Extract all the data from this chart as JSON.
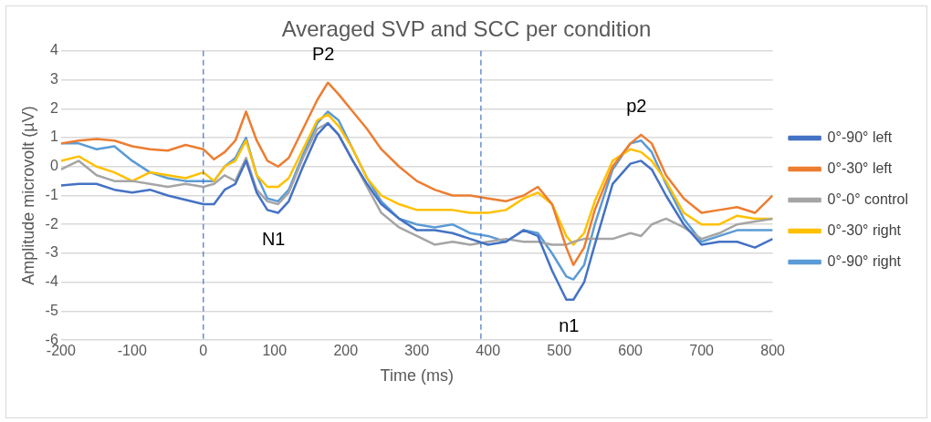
{
  "chart_data": {
    "type": "line",
    "title": "Averaged SVP and SCC per condition",
    "xlabel": "Time (ms)",
    "ylabel": "Amplitude microvolt (µV)",
    "x": [
      -200,
      -175,
      -150,
      -125,
      -100,
      -75,
      -50,
      -25,
      0,
      15,
      30,
      45,
      60,
      75,
      90,
      105,
      120,
      140,
      160,
      175,
      190,
      210,
      230,
      250,
      275,
      300,
      325,
      350,
      375,
      400,
      425,
      450,
      470,
      490,
      510,
      520,
      535,
      550,
      575,
      600,
      615,
      630,
      650,
      675,
      700,
      725,
      750,
      775,
      800
    ],
    "series": [
      {
        "name": "0°-90° left",
        "color": "#4472c4",
        "values": [
          -0.65,
          -0.6,
          -0.6,
          -0.8,
          -0.9,
          -0.8,
          -1.0,
          -1.15,
          -1.3,
          -1.3,
          -0.8,
          -0.6,
          0.2,
          -0.9,
          -1.5,
          -1.6,
          -1.2,
          0.0,
          1.1,
          1.5,
          1.1,
          0.2,
          -0.6,
          -1.3,
          -1.8,
          -2.2,
          -2.2,
          -2.3,
          -2.5,
          -2.7,
          -2.6,
          -2.2,
          -2.4,
          -3.6,
          -4.6,
          -4.6,
          -4.0,
          -2.7,
          -0.6,
          0.1,
          0.2,
          -0.1,
          -1.0,
          -2.0,
          -2.7,
          -2.6,
          -2.6,
          -2.8,
          -2.5
        ]
      },
      {
        "name": "0°-30° left",
        "color": "#ed7d31",
        "values": [
          0.8,
          0.9,
          0.95,
          0.9,
          0.7,
          0.6,
          0.55,
          0.75,
          0.6,
          0.25,
          0.5,
          0.9,
          1.9,
          0.9,
          0.2,
          0.0,
          0.3,
          1.3,
          2.3,
          2.9,
          2.5,
          1.9,
          1.3,
          0.6,
          0.0,
          -0.5,
          -0.8,
          -1.0,
          -1.0,
          -1.1,
          -1.2,
          -1.0,
          -0.7,
          -1.3,
          -2.8,
          -3.4,
          -2.8,
          -1.5,
          0.0,
          0.8,
          1.1,
          0.8,
          -0.3,
          -1.1,
          -1.6,
          -1.5,
          -1.4,
          -1.6,
          -1.0
        ]
      },
      {
        "name": "0°-0° control",
        "color": "#a5a5a5",
        "values": [
          -0.1,
          0.2,
          -0.3,
          -0.5,
          -0.5,
          -0.6,
          -0.7,
          -0.6,
          -0.7,
          -0.6,
          -0.3,
          -0.5,
          0.3,
          -0.8,
          -1.2,
          -1.3,
          -0.9,
          0.3,
          1.3,
          1.5,
          1.1,
          0.2,
          -0.7,
          -1.6,
          -2.1,
          -2.4,
          -2.7,
          -2.6,
          -2.7,
          -2.6,
          -2.5,
          -2.6,
          -2.6,
          -2.7,
          -2.7,
          -2.6,
          -2.5,
          -2.5,
          -2.5,
          -2.3,
          -2.4,
          -2.0,
          -1.8,
          -2.1,
          -2.5,
          -2.3,
          -2.0,
          -1.9,
          -1.8
        ]
      },
      {
        "name": "0°-30° right",
        "color": "#ffc000",
        "values": [
          0.2,
          0.35,
          0.0,
          -0.2,
          -0.5,
          -0.2,
          -0.3,
          -0.4,
          -0.2,
          -0.5,
          0.0,
          0.2,
          0.9,
          -0.3,
          -0.7,
          -0.7,
          -0.4,
          0.6,
          1.6,
          1.8,
          1.4,
          0.6,
          -0.4,
          -1.0,
          -1.3,
          -1.5,
          -1.5,
          -1.5,
          -1.6,
          -1.6,
          -1.5,
          -1.1,
          -0.9,
          -1.3,
          -2.4,
          -2.7,
          -2.3,
          -1.2,
          0.2,
          0.6,
          0.5,
          0.2,
          -0.5,
          -1.6,
          -2.0,
          -2.0,
          -1.7,
          -1.8,
          -1.8
        ]
      },
      {
        "name": "0°-90° right",
        "color": "#5b9bd5",
        "values": [
          0.8,
          0.8,
          0.6,
          0.7,
          0.2,
          -0.2,
          -0.4,
          -0.5,
          -0.5,
          -0.5,
          0.0,
          0.3,
          1.0,
          -0.3,
          -1.1,
          -1.2,
          -0.8,
          0.4,
          1.5,
          1.9,
          1.6,
          0.6,
          -0.4,
          -1.2,
          -1.8,
          -2.0,
          -2.1,
          -2.0,
          -2.3,
          -2.4,
          -2.6,
          -2.2,
          -2.3,
          -3.0,
          -3.8,
          -3.9,
          -3.4,
          -2.0,
          -0.1,
          0.8,
          0.9,
          0.5,
          -0.6,
          -1.8,
          -2.6,
          -2.4,
          -2.2,
          -2.2,
          -2.2
        ]
      }
    ],
    "xlim": [
      -200,
      800
    ],
    "xticks": [
      -200,
      -100,
      0,
      100,
      200,
      300,
      400,
      500,
      600,
      700,
      800
    ],
    "ylim": [
      -6,
      4
    ],
    "yticks": [
      -6,
      -5,
      -4,
      -3,
      -2,
      -1,
      0,
      1,
      2,
      3,
      4
    ],
    "ref_lines": [
      {
        "axis": "x",
        "value": 0,
        "color": "#4472c4",
        "line_style": "dashed"
      },
      {
        "axis": "x",
        "value": 390,
        "color": "#4472c4",
        "line_style": "dashed"
      }
    ],
    "annotations": [
      {
        "text": "P2",
        "x": 175,
        "y": 2.9
      },
      {
        "text": "N1",
        "x": 105,
        "y": -1.6
      },
      {
        "text": "p2",
        "x": 615,
        "y": 1.1
      },
      {
        "text": "n1",
        "x": 520,
        "y": -4.6
      }
    ],
    "grid": "y",
    "legend": "right",
    "marker": "none",
    "line_style": "solid"
  }
}
